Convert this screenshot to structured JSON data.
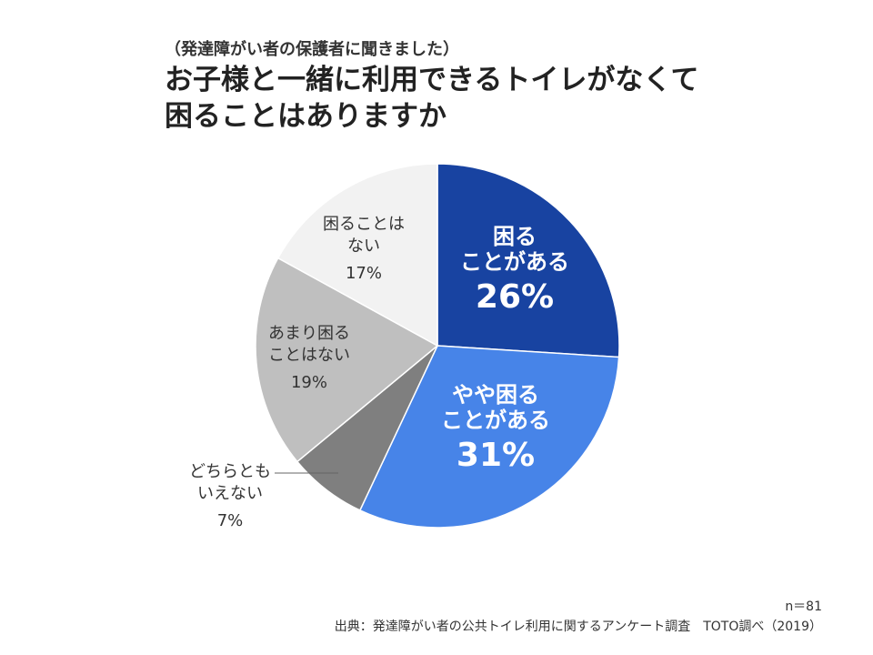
{
  "header": {
    "subtitle": "（発達障がい者の保護者に聞きました）",
    "title_line1": "お子様と一緒に利用できるトイレがなくて",
    "title_line2": "困ることはありますか"
  },
  "chart_data": {
    "type": "pie",
    "slices": [
      {
        "label_lines": [
          "困る",
          "ことがある"
        ],
        "value": 26,
        "value_text": "26%",
        "color": "#1843a1",
        "text_color": "#ffffff"
      },
      {
        "label_lines": [
          "やや困る",
          "ことがある"
        ],
        "value": 31,
        "value_text": "31%",
        "color": "#4784e8",
        "text_color": "#ffffff"
      },
      {
        "label_lines": [
          "どちらとも",
          "いえない"
        ],
        "value": 7,
        "value_text": "7%",
        "color": "#7f7f7f",
        "text_color": "#333333"
      },
      {
        "label_lines": [
          "あまり困る",
          "ことはない"
        ],
        "value": 19,
        "value_text": "19%",
        "color": "#bfbfbf",
        "text_color": "#333333"
      },
      {
        "label_lines": [
          "困ることは",
          "ない"
        ],
        "value": 17,
        "value_text": "17%",
        "color": "#f2f2f2",
        "text_color": "#333333"
      }
    ],
    "start": "12 o'clock",
    "direction": "clockwise"
  },
  "footer": {
    "sample": "n＝81",
    "source": "出典：発達障がい者の公共トイレ利用に関するアンケート調査　TOTO調べ（2019）"
  }
}
